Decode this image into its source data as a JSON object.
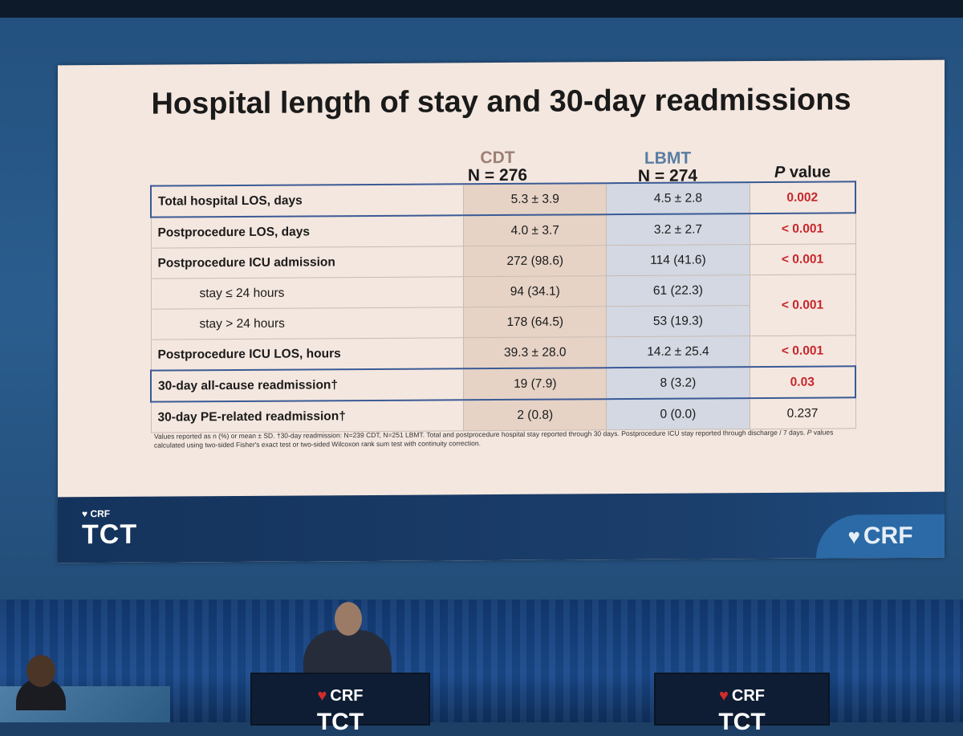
{
  "slide": {
    "title": "Hospital length of stay and 30-day readmissions",
    "columns": {
      "cdt_group": "CDT",
      "cdt_n": "N = 276",
      "lbmt_group": "LBMT",
      "lbmt_n": "N = 274",
      "p_label_italic": "P",
      "p_label_rest": " value"
    },
    "rows": [
      {
        "label": "Total hospital LOS, days",
        "cdt": "5.3 ± 3.9",
        "lbmt": "4.5 ± 2.8",
        "p": "0.002"
      },
      {
        "label": "Postprocedure LOS, days",
        "cdt": "4.0 ± 3.7",
        "lbmt": "3.2 ± 2.7",
        "p": "< 0.001"
      },
      {
        "label": "Postprocedure ICU admission",
        "cdt": "272 (98.6)",
        "lbmt": "114 (41.6)",
        "p": "< 0.001"
      },
      {
        "label": "stay ≤ 24 hours",
        "cdt": "94 (34.1)",
        "lbmt": "61 (22.3)",
        "p": "< 0.001"
      },
      {
        "label": "stay > 24 hours",
        "cdt": "178 (64.5)",
        "lbmt": "53 (19.3)",
        "p": ""
      },
      {
        "label": "Postprocedure ICU LOS, hours",
        "cdt": "39.3 ± 28.0",
        "lbmt": "14.2 ± 25.4",
        "p": "< 0.001"
      },
      {
        "label": "30-day all-cause readmission†",
        "cdt": "19 (7.9)",
        "lbmt": "8 (3.2)",
        "p": "0.03"
      },
      {
        "label": "30-day PE-related readmission†",
        "cdt": "2 (0.8)",
        "lbmt": "0 (0.0)",
        "p": "0.237"
      }
    ],
    "footnote_part1": "Values reported as n (%) or mean ± SD. †30-day readmission: N=239 CDT, N=251 LBMT. Total and postprocedure hospital stay reported through 30 days. Postprocedure ICU stay reported through discharge / 7 days. ",
    "footnote_p": "P",
    "footnote_part2": " values calculated using two-sided Fisher's exact test or two-sided Wilcoxon rank sum test with continuity correction.",
    "footer_left_small": "CRF",
    "footer_left_logo": "TCT",
    "footer_right_logo": "CRF"
  },
  "stage": {
    "podium_left_crf": "CRF",
    "podium_left_tct": "TCT",
    "podium_right_crf": "CRF",
    "podium_right_tct": "TCT"
  },
  "colors": {
    "p_significant": "#c8262c",
    "highlight_border": "#3a5a96",
    "cdt_cell": "#e6d3c6",
    "lbmt_cell": "#d3d8e2"
  }
}
